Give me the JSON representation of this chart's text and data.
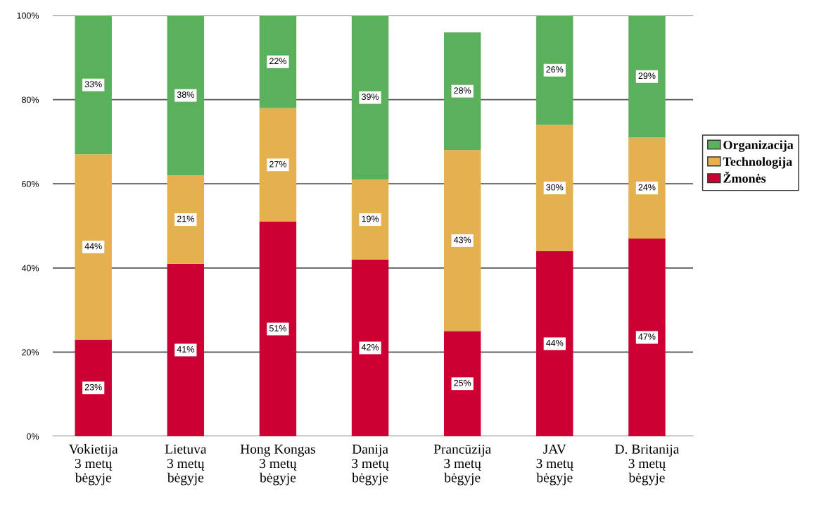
{
  "chart_data": {
    "type": "bar",
    "stacked": true,
    "categories": [
      "Vokietija\n3 metų\nbėgyje",
      "Lietuva\n3 metų\nbėgyje",
      "Hong Kongas\n3 metų\nbėgyje",
      "Danija\n3 metų\nbėgyje",
      "Prancūzija\n3 metų\nbėgyje",
      "JAV\n3 metų\nbėgyje",
      "D. Britanija\n3 metų\nbėgyje"
    ],
    "series": [
      {
        "name": "Žmonės",
        "color": "#cc0033",
        "values": [
          23,
          41,
          51,
          42,
          25,
          44,
          47
        ],
        "value_labels": [
          "23%",
          "41%",
          "51%",
          "42%",
          "25%",
          "44%",
          "47%"
        ]
      },
      {
        "name": "Technologija",
        "color": "#e5b050",
        "values": [
          44,
          21,
          27,
          19,
          43,
          30,
          24
        ],
        "value_labels": [
          "44%",
          "21%",
          "27%",
          "19%",
          "43%",
          "30%",
          "24%"
        ]
      },
      {
        "name": "Organizacija",
        "color": "#5bb15b",
        "values": [
          33,
          38,
          22,
          39,
          28,
          26,
          29
        ],
        "value_labels": [
          "33%",
          "38%",
          "22%",
          "39%",
          "28%",
          "26%",
          "29%"
        ]
      }
    ],
    "ylim": [
      0,
      100
    ],
    "yticks": [
      {
        "value": 0,
        "label": "0%"
      },
      {
        "value": 20,
        "label": "20%"
      },
      {
        "value": 40,
        "label": "40%"
      },
      {
        "value": 60,
        "label": "60%"
      },
      {
        "value": 80,
        "label": "80%"
      },
      {
        "value": 100,
        "label": "100%"
      }
    ],
    "grid": "y",
    "legend": "right"
  }
}
